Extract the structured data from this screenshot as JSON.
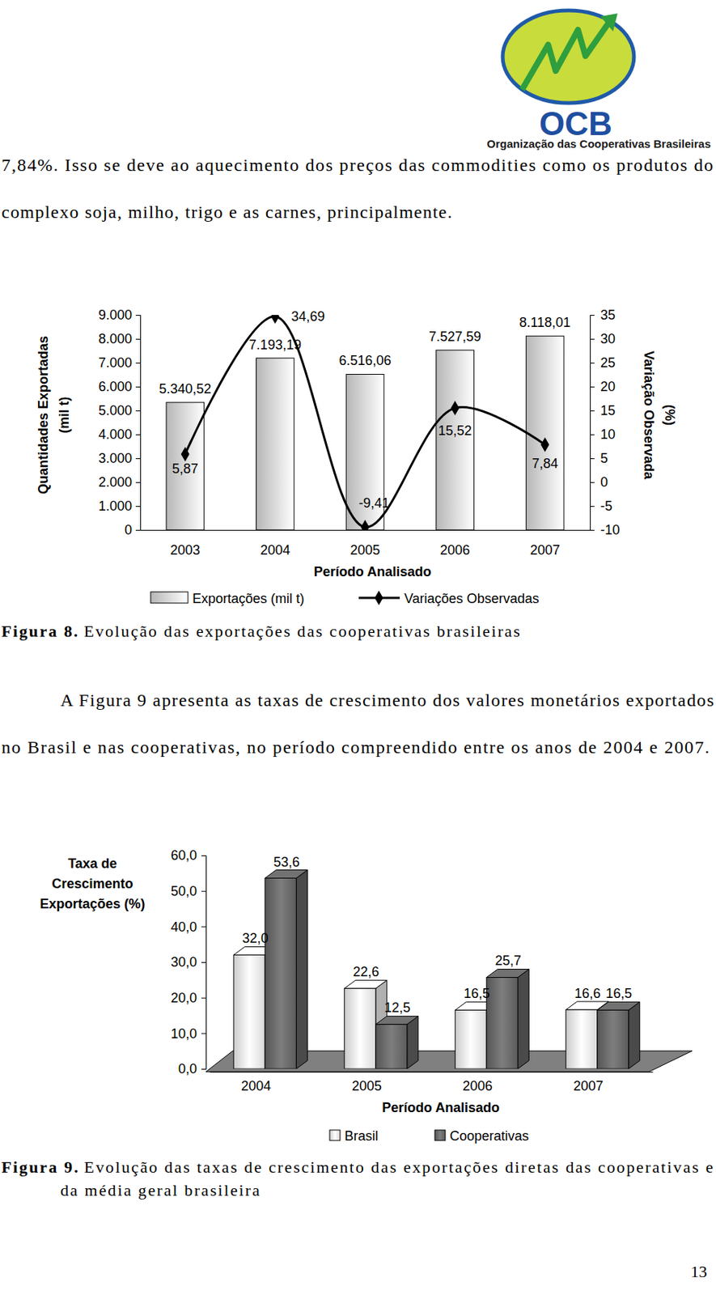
{
  "header": {
    "logo_text": "OCB",
    "organization": "Organização das Cooperativas Brasileiras"
  },
  "paragraphs": [
    [
      "7,84%. Isso se deve ao aquecimento dos preços das commodities como os produtos do",
      "complexo soja, milho, trigo e as carnes, principalmente."
    ],
    [
      "A Figura 9 apresenta as taxas de crescimento dos valores monetários exportados",
      "no Brasil e nas cooperativas, no período compreendido entre os anos de 2004 e 2007."
    ]
  ],
  "chart_data": [
    {
      "type": "bar",
      "x_label": "Período Analisado",
      "y_label": [
        "Quantidades Exportadas",
        "(mil t)"
      ],
      "y2_label": [
        "Variação Observada",
        "(%)"
      ],
      "categories": [
        "2003",
        "2004",
        "2005",
        "2006",
        "2007"
      ],
      "series": [
        {
          "name": "Exportações (mil t)",
          "type": "bar",
          "color": "#d9d9d9",
          "values": [
            5340.52,
            7193.19,
            6516.06,
            7527.59,
            8118.01
          ],
          "value_labels": [
            "5.340,52",
            "7.193,19",
            "6.516,06",
            "7.527,59",
            "8.118,01"
          ]
        },
        {
          "name": "Variações Observadas",
          "type": "line",
          "axis": "y2",
          "color": "#000000",
          "marker": "diamond",
          "line_style": "solid",
          "values": [
            5.87,
            34.69,
            -9.41,
            15.52,
            7.84
          ],
          "value_labels": [
            "5,87",
            "34,69",
            "-9,41",
            "15,52",
            "7,84"
          ]
        }
      ],
      "ylim": [
        0,
        9000
      ],
      "yticks": [
        0,
        {
          "value": 1000,
          "label": "1.000"
        },
        {
          "value": 2000,
          "label": "2.000"
        },
        {
          "value": 3000,
          "label": "3.000"
        },
        {
          "value": 4000,
          "label": "4.000"
        },
        {
          "value": 5000,
          "label": "5.000"
        },
        {
          "value": 6000,
          "label": "6.000"
        },
        {
          "value": 7000,
          "label": "7.000"
        },
        {
          "value": 8000,
          "label": "8.000"
        },
        {
          "value": 9000,
          "label": "9.000"
        }
      ],
      "y2lim": [
        -10,
        35
      ],
      "y2ticks": [
        -10,
        -5,
        0,
        5,
        10,
        15,
        20,
        25,
        30,
        35
      ],
      "data_labels": true,
      "legend": "bottom"
    },
    {
      "type": "bar",
      "x_label": "Período Analisado",
      "y_label": [
        "Taxa de",
        "Crescimento",
        "Exportações (%)"
      ],
      "categories": [
        "2004",
        "2005",
        "2006",
        "2007"
      ],
      "series": [
        {
          "name": "Brasil",
          "color": "#f2f2f2",
          "values": [
            32.0,
            22.6,
            16.5,
            16.6
          ],
          "value_labels": [
            "32,0",
            "22,6",
            "16,5",
            "16,6"
          ]
        },
        {
          "name": "Cooperativas",
          "color": "#666666",
          "values": [
            53.6,
            12.5,
            25.7,
            16.5
          ],
          "value_labels": [
            "53,6",
            "12,5",
            "25,7",
            "16,5"
          ]
        }
      ],
      "ylim": [
        0,
        60
      ],
      "yticks": [
        {
          "value": 0,
          "label": "0,0"
        },
        {
          "value": 10,
          "label": "10,0"
        },
        {
          "value": 20,
          "label": "20,0"
        },
        {
          "value": 30,
          "label": "30,0"
        },
        {
          "value": 40,
          "label": "40,0"
        },
        {
          "value": 50,
          "label": "50,0"
        },
        {
          "value": 60,
          "label": "60,0"
        }
      ],
      "data_labels": true,
      "legend": "bottom"
    }
  ],
  "captions": [
    {
      "label": "Figura 8.",
      "lines": [
        "Evolução das exportações das cooperativas brasileiras"
      ]
    },
    {
      "label": "Figura 9.",
      "lines": [
        "Evolução das taxas de crescimento das exportações diretas das cooperativas e",
        "da média geral brasileira"
      ]
    }
  ],
  "page_number": "13"
}
